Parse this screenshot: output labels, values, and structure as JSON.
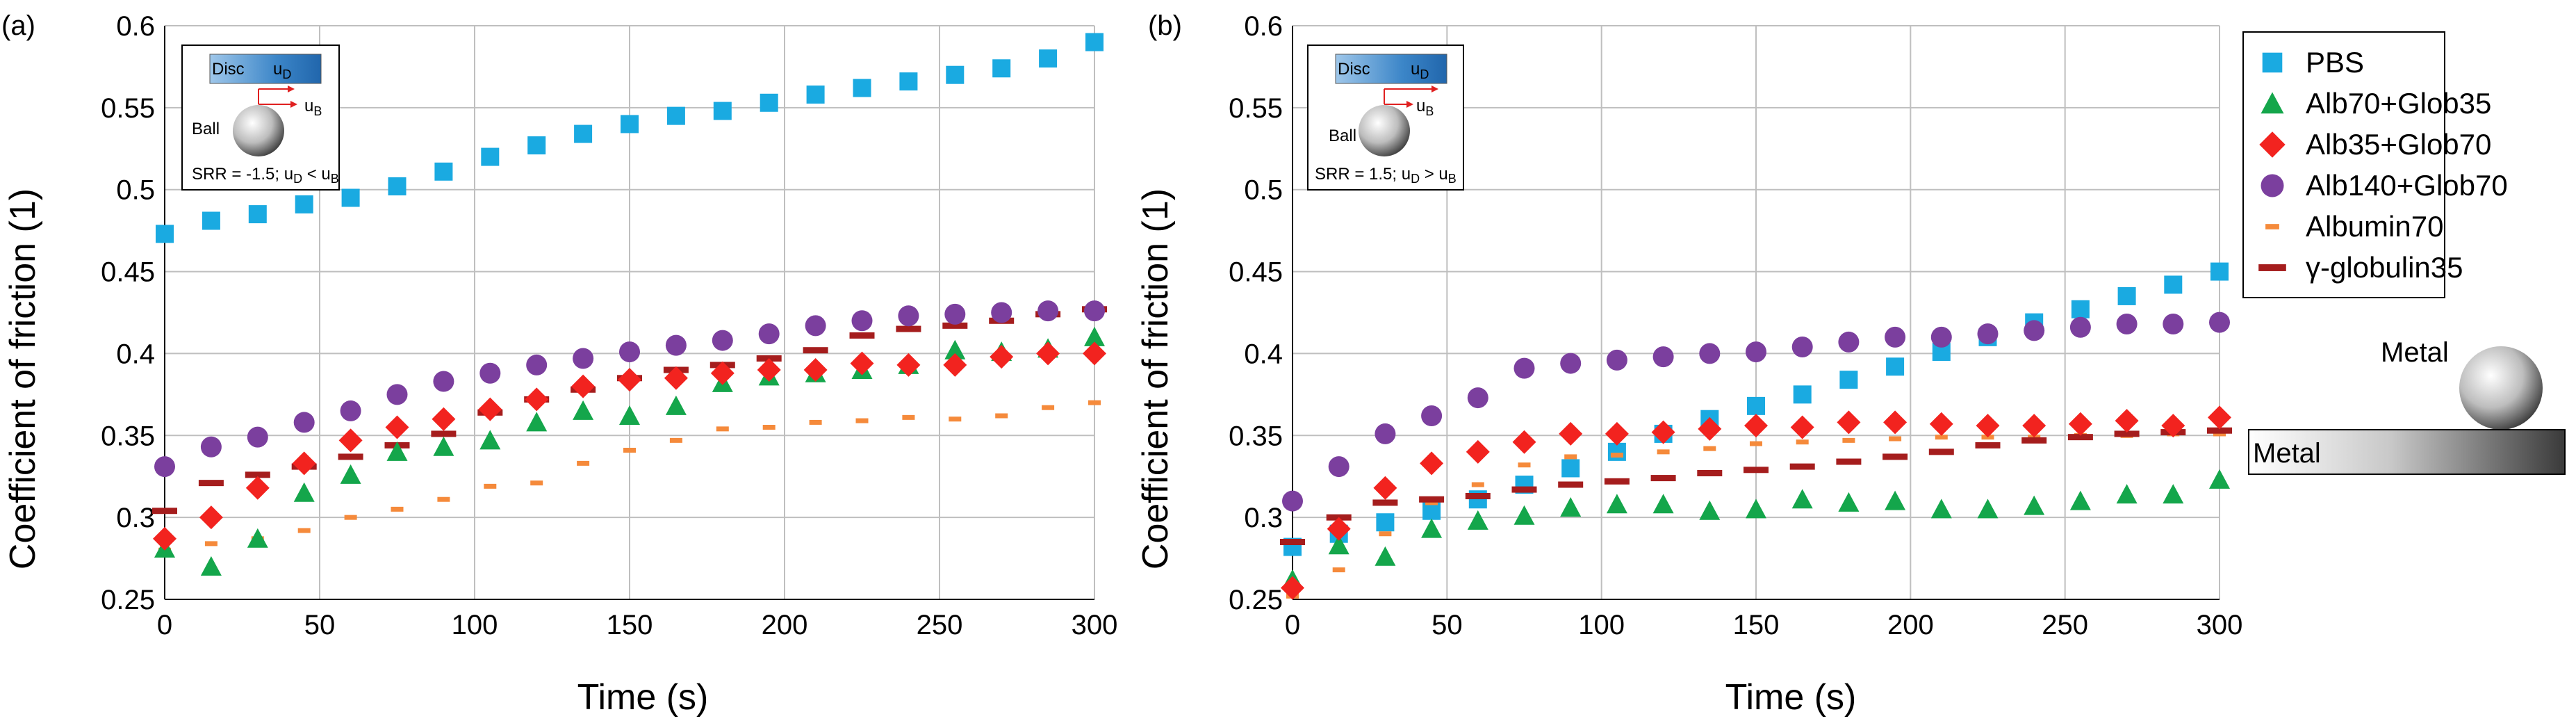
{
  "chart_data": [
    {
      "panel": "(a)",
      "type": "scatter",
      "xlabel": "Time (s)",
      "ylabel": "Coefficient of friction (1)",
      "xlim": [
        0,
        300
      ],
      "ylim": [
        0.25,
        0.6
      ],
      "xticks": [
        "0",
        "50",
        "100",
        "150",
        "200",
        "250",
        "300"
      ],
      "yticks": [
        "0.25",
        "0.3",
        "0.35",
        "0.4",
        "0.45",
        "0.5",
        "0.55",
        "0.6"
      ],
      "grid": true,
      "inset": {
        "disc_label": "Disc",
        "ud_label": "u",
        "ud_sub": "D",
        "ball_label": "Ball",
        "ub_label": "u",
        "ub_sub": "B",
        "srr_text": "SRR = -1.5; u",
        "srr_sub1": "D",
        "srr_mid": " < u",
        "srr_sub2": "B"
      },
      "x": [
        0,
        15,
        30,
        45,
        60,
        75,
        90,
        105,
        120,
        135,
        150,
        165,
        180,
        195,
        210,
        225,
        240,
        255,
        270,
        285,
        300
      ],
      "series": [
        {
          "name": "PBS",
          "values": [
            0.473,
            0.481,
            0.485,
            0.491,
            0.495,
            0.502,
            0.511,
            0.52,
            0.527,
            0.534,
            0.54,
            0.545,
            0.548,
            0.553,
            0.558,
            0.562,
            0.566,
            0.57,
            0.574,
            0.58,
            0.59
          ]
        },
        {
          "name": "Alb70+Glob35",
          "values": [
            0.281,
            0.27,
            0.287,
            0.315,
            0.326,
            0.34,
            0.343,
            0.347,
            0.358,
            0.365,
            0.362,
            0.368,
            0.382,
            0.386,
            0.388,
            0.39,
            0.393,
            0.402,
            0.401,
            0.403,
            0.41
          ]
        },
        {
          "name": "Alb35+Glob70",
          "values": [
            0.287,
            0.3,
            0.318,
            0.333,
            0.347,
            0.355,
            0.36,
            0.366,
            0.372,
            0.38,
            0.384,
            0.385,
            0.388,
            0.39,
            0.39,
            0.394,
            0.393,
            0.393,
            0.398,
            0.4,
            0.4
          ]
        },
        {
          "name": "Alb140+Glob70",
          "values": [
            0.331,
            0.343,
            0.349,
            0.358,
            0.365,
            0.375,
            0.383,
            0.388,
            0.393,
            0.397,
            0.401,
            0.405,
            0.408,
            0.412,
            0.417,
            0.42,
            0.423,
            0.424,
            0.425,
            0.426,
            0.426
          ]
        },
        {
          "name": "Albumin70",
          "values": [
            0.28,
            0.284,
            0.287,
            0.292,
            0.3,
            0.305,
            0.311,
            0.319,
            0.321,
            0.333,
            0.341,
            0.347,
            0.354,
            0.355,
            0.358,
            0.359,
            0.361,
            0.36,
            0.362,
            0.367,
            0.37
          ]
        },
        {
          "name": "γ-globulin35",
          "values": [
            0.304,
            0.321,
            0.326,
            0.331,
            0.337,
            0.344,
            0.351,
            0.364,
            0.372,
            0.378,
            0.385,
            0.39,
            0.393,
            0.397,
            0.402,
            0.411,
            0.415,
            0.417,
            0.42,
            0.424,
            0.427
          ]
        }
      ]
    },
    {
      "panel": "(b)",
      "type": "scatter",
      "xlabel": "Time (s)",
      "ylabel": "Coefficient of friction (1)",
      "xlim": [
        0,
        300
      ],
      "ylim": [
        0.25,
        0.6
      ],
      "xticks": [
        "0",
        "50",
        "100",
        "150",
        "200",
        "250",
        "300"
      ],
      "yticks": [
        "0.25",
        "0.3",
        "0.35",
        "0.4",
        "0.45",
        "0.5",
        "0.55",
        "0.6"
      ],
      "grid": true,
      "inset": {
        "disc_label": "Disc",
        "ud_label": "u",
        "ud_sub": "D",
        "ball_label": "Ball",
        "ub_label": "u",
        "ub_sub": "B",
        "srr_text": "SRR = 1.5; u",
        "srr_sub1": "D",
        "srr_mid": " > u",
        "srr_sub2": "B"
      },
      "x": [
        0,
        15,
        30,
        45,
        60,
        75,
        90,
        105,
        120,
        135,
        150,
        165,
        180,
        195,
        210,
        225,
        240,
        255,
        270,
        285,
        300
      ],
      "series": [
        {
          "name": "PBS",
          "values": [
            0.282,
            0.29,
            0.297,
            0.304,
            0.311,
            0.32,
            0.33,
            0.34,
            0.351,
            0.36,
            0.368,
            0.375,
            0.384,
            0.392,
            0.401,
            0.41,
            0.419,
            0.427,
            0.435,
            0.442,
            0.45
          ]
        },
        {
          "name": "Alb70+Glob35",
          "values": [
            0.262,
            0.283,
            0.276,
            0.293,
            0.298,
            0.301,
            0.306,
            0.308,
            0.308,
            0.304,
            0.305,
            0.311,
            0.309,
            0.31,
            0.305,
            0.305,
            0.307,
            0.31,
            0.314,
            0.314,
            0.323
          ]
        },
        {
          "name": "Alb35+Glob70",
          "values": [
            0.257,
            0.293,
            0.318,
            0.333,
            0.34,
            0.346,
            0.351,
            0.351,
            0.352,
            0.354,
            0.356,
            0.355,
            0.358,
            0.358,
            0.357,
            0.356,
            0.356,
            0.357,
            0.359,
            0.356,
            0.361
          ]
        },
        {
          "name": "Alb140+Glob70",
          "values": [
            0.31,
            0.331,
            0.351,
            0.362,
            0.373,
            0.391,
            0.394,
            0.396,
            0.398,
            0.4,
            0.401,
            0.404,
            0.407,
            0.41,
            0.41,
            0.412,
            0.414,
            0.416,
            0.418,
            0.418,
            0.419
          ]
        },
        {
          "name": "Albumin70",
          "values": [
            0.252,
            0.268,
            0.29,
            0.309,
            0.32,
            0.332,
            0.337,
            0.338,
            0.34,
            0.342,
            0.345,
            0.346,
            0.347,
            0.348,
            0.349,
            0.349,
            0.349,
            0.35,
            0.35,
            0.351,
            0.351
          ]
        },
        {
          "name": "γ-globulin35",
          "values": [
            0.285,
            0.3,
            0.309,
            0.311,
            0.313,
            0.317,
            0.32,
            0.322,
            0.324,
            0.327,
            0.329,
            0.331,
            0.334,
            0.337,
            0.34,
            0.344,
            0.347,
            0.349,
            0.351,
            0.352,
            0.353
          ]
        }
      ]
    }
  ],
  "legend": [
    {
      "name": "PBS",
      "marker": "square",
      "color": "#1AAAE1"
    },
    {
      "name": "Alb70+Glob35",
      "marker": "triangle",
      "color": "#14A64B"
    },
    {
      "name": "Alb35+Glob70",
      "marker": "diamond",
      "color": "#F2231F"
    },
    {
      "name": "Alb140+Glob70",
      "marker": "circle",
      "color": "#7B3F9E"
    },
    {
      "name": "Albumin70",
      "marker": "dash",
      "color": "#F58A3B"
    },
    {
      "name": "γ-globulin35",
      "marker": "bar",
      "color": "#A51D1D"
    }
  ],
  "schematic": {
    "ball_label": "Metal",
    "plate_label": "Metal"
  }
}
